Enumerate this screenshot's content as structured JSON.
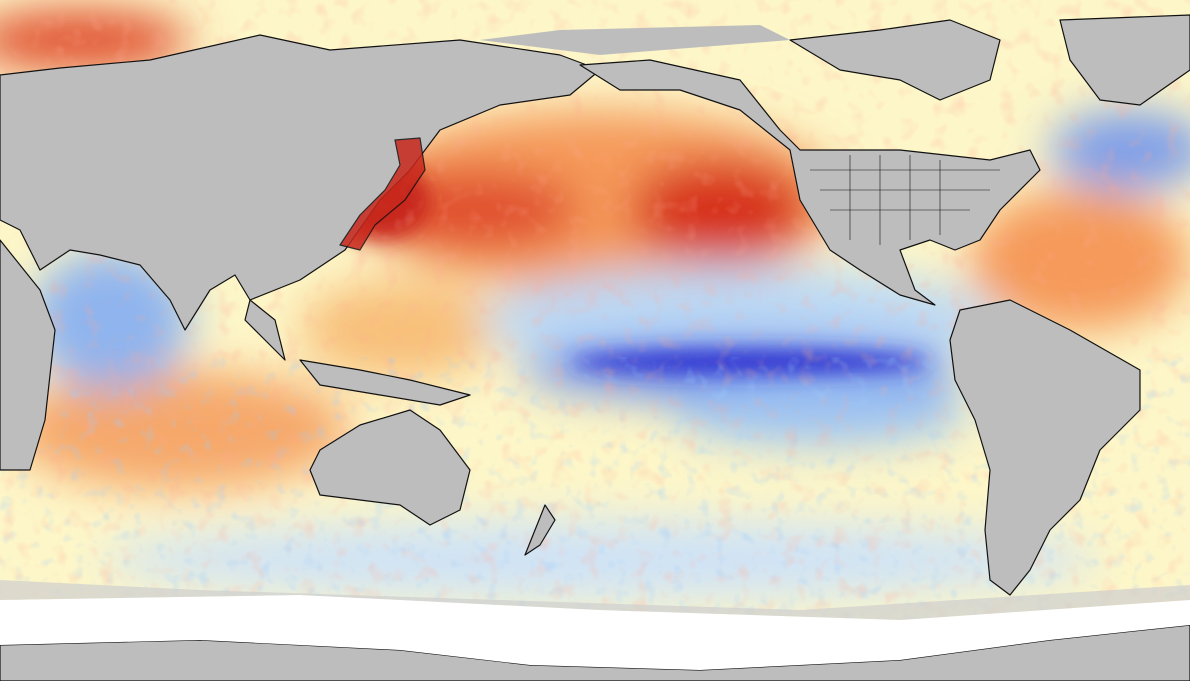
{
  "map": {
    "colors": {
      "neutral_ocean": "#fdf6c8",
      "warm": "#f59a5a",
      "hot": "#d7301f",
      "cool": "#a9cff5",
      "cold": "#5a7fe6",
      "coldest": "#2a2fcf",
      "land": "#bdbdbd",
      "ice": "#ffffff",
      "coastline": "#111111"
    }
  }
}
